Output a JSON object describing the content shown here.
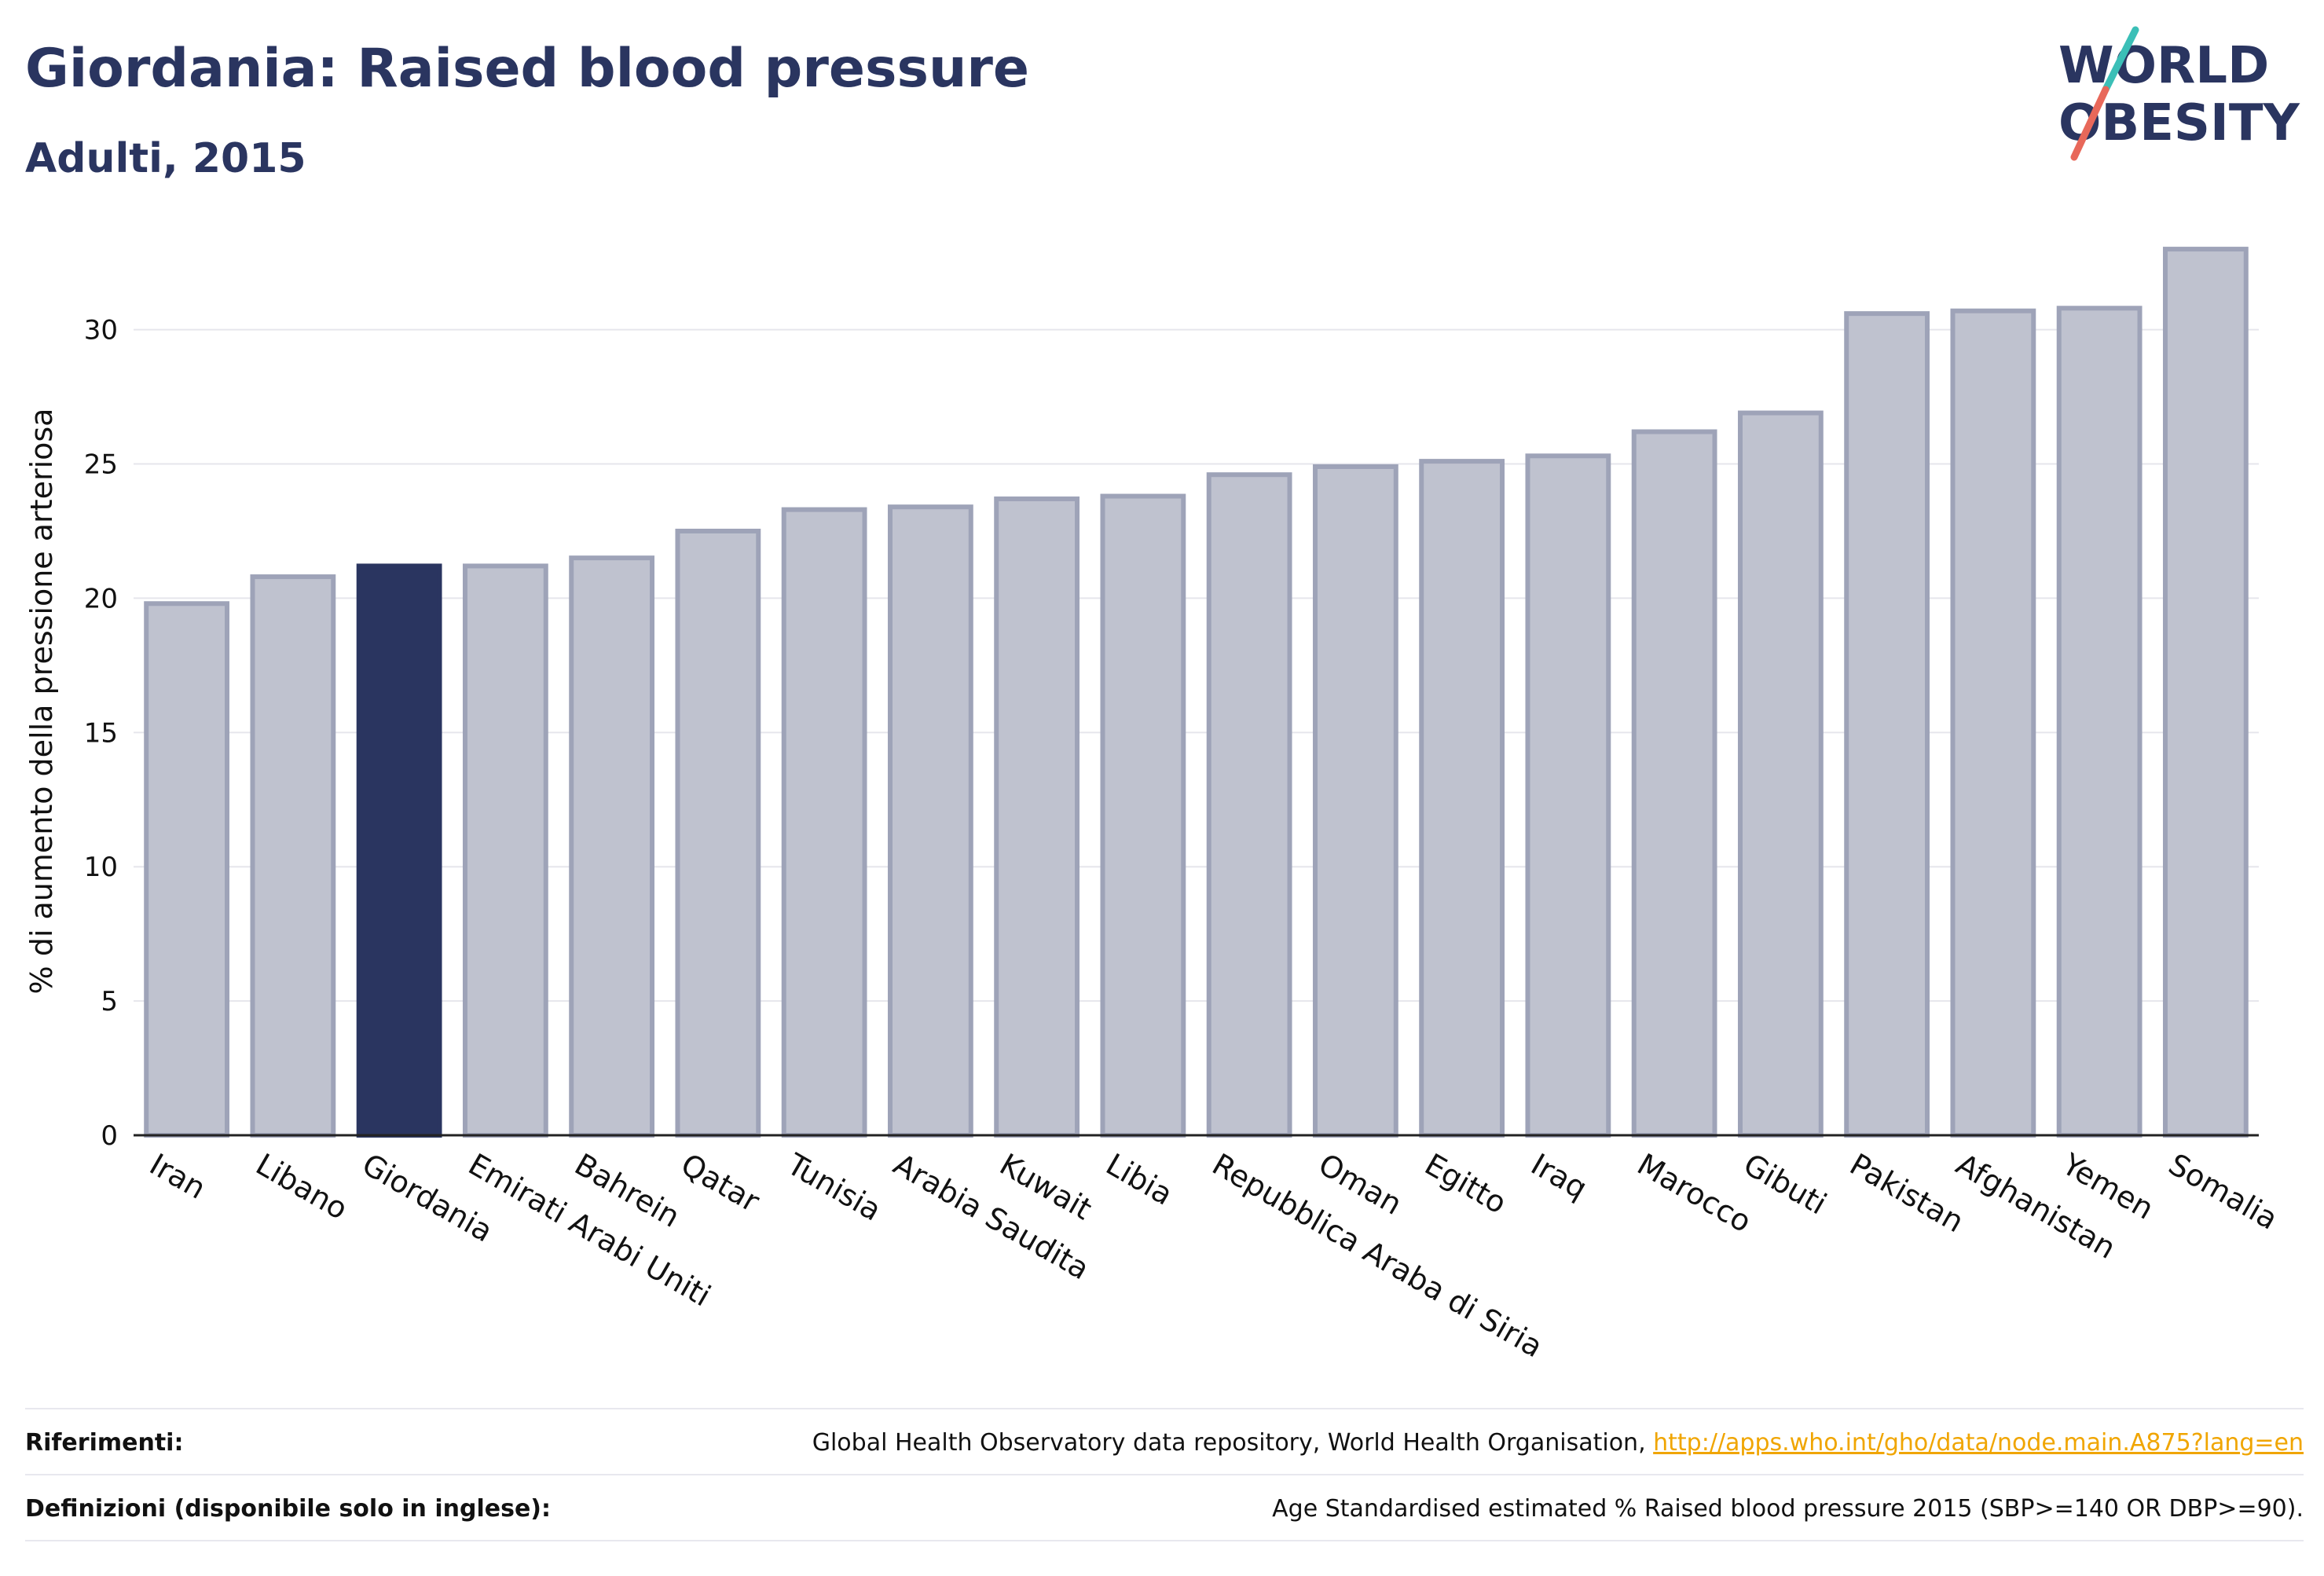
{
  "header": {
    "title": "Giordania: Raised blood pressure",
    "subtitle": "Adulti, 2015"
  },
  "logo": {
    "line1": "WORLD",
    "line2": "OBESITY"
  },
  "colors": {
    "highlight": "#2a3560",
    "bar": "#bfc2cf",
    "bar_stroke": "#9ea3b8",
    "accent_link": "#f0a500"
  },
  "chart_data": {
    "type": "bar",
    "ylabel": "% di aumento della pressione arteriosa",
    "ylim": [
      0,
      33.5
    ],
    "yticks": [
      0,
      5,
      10,
      15,
      20,
      25,
      30
    ],
    "grid": true,
    "highlight": "Giordania",
    "categories": [
      "Iran",
      "Libano",
      "Giordania",
      "Emirati Arabi Uniti",
      "Bahrein",
      "Qatar",
      "Tunisia",
      "Arabia Saudita",
      "Kuwait",
      "Libia",
      "Repubblica Araba di Siria",
      "Oman",
      "Egitto",
      "Iraq",
      "Marocco",
      "Gibuti",
      "Pakistan",
      "Afghanistan",
      "Yemen",
      "Somalia"
    ],
    "values": [
      19.8,
      20.8,
      21.2,
      21.2,
      21.5,
      22.5,
      23.3,
      23.4,
      23.7,
      23.8,
      24.6,
      24.9,
      25.1,
      25.3,
      26.2,
      26.9,
      30.6,
      30.7,
      30.8,
      33.0
    ]
  },
  "footer": {
    "refs_label": "Riferimenti:",
    "refs_text": "Global Health Observatory data repository, World Health Organisation, ",
    "refs_link": "http://apps.who.int/gho/data/node.main.A875?lang=en",
    "defs_label": "Definizioni (disponibile solo in inglese):",
    "defs_text": "Age Standardised estimated % Raised blood pressure 2015 (SBP>=140 OR DBP>=90)."
  }
}
